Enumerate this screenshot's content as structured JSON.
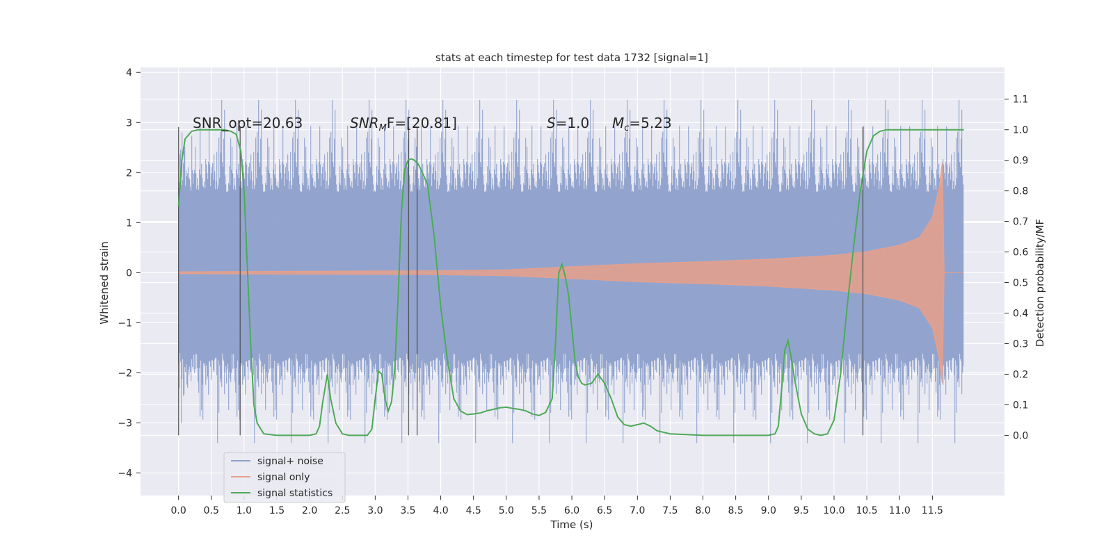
{
  "chart_data": {
    "type": "line",
    "title": "stats at each timestep for test data 1732 [signal=1]",
    "xlabel": "Time (s)",
    "ylabel": "Whitened strain",
    "y2label": "Detection probability/MF",
    "xlim": [
      -0.58,
      12.6
    ],
    "ylim": [
      -4.45,
      4.1
    ],
    "y2lim": [
      -0.197,
      1.204
    ],
    "xticks": [
      "0.0",
      "0.5",
      "1.0",
      "1.5",
      "2.0",
      "2.5",
      "3.0",
      "3.5",
      "4.0",
      "4.5",
      "5.0",
      "5.5",
      "6.0",
      "6.5",
      "7.0",
      "7.5",
      "8.0",
      "8.5",
      "9.0",
      "9.5",
      "10.0",
      "10.5",
      "11.0",
      "11.5"
    ],
    "yticks": [
      "4",
      "3",
      "2",
      "1",
      "0",
      "−1",
      "−2",
      "−3",
      "−4"
    ],
    "y2ticks": [
      "1.1",
      "1.0",
      "0.9",
      "0.8",
      "0.7",
      "0.6",
      "0.5",
      "0.4",
      "0.3",
      "0.2",
      "0.1",
      "0.0"
    ],
    "grid": true,
    "legend_position": "lower-left",
    "annotations": {
      "snr_opt": "SNR_opt=20.63",
      "snr_mf_main": "SNR",
      "snr_mf_sub": "M",
      "snr_mf_rest": "F=[20.81]",
      "s_italic": "S",
      "s_rest": "=1.0",
      "mc_italic": "M",
      "mc_sub": "c",
      "mc_rest": "=5.23"
    },
    "vertical_markers_x": [
      0.0,
      0.94,
      3.51,
      3.64,
      10.44
    ],
    "series": [
      {
        "name": "signal+ noise",
        "color": "#8da0cb",
        "envelope_typical": 1.6,
        "peak_range": [
          -4.1,
          3.6
        ],
        "t_range": [
          0.0,
          11.98
        ]
      },
      {
        "name": "signal only",
        "color": "#e8a08a",
        "amplitude_envelope": {
          "t": [
            0.0,
            2.0,
            4.0,
            5.0,
            6.0,
            7.0,
            8.0,
            9.0,
            10.0,
            10.5,
            11.0,
            11.3,
            11.5,
            11.6,
            11.65,
            11.68,
            11.98
          ],
          "amp": [
            0.02,
            0.03,
            0.04,
            0.06,
            0.12,
            0.18,
            0.22,
            0.27,
            0.35,
            0.42,
            0.55,
            0.7,
            1.1,
            1.7,
            2.2,
            0.0,
            0.0
          ]
        }
      },
      {
        "name": "signal statistics",
        "color": "#4daa57",
        "x": [
          0.0,
          0.05,
          0.1,
          0.2,
          0.3,
          0.5,
          0.7,
          0.8,
          0.88,
          0.95,
          1.0,
          1.05,
          1.1,
          1.15,
          1.2,
          1.3,
          1.5,
          2.0,
          2.1,
          2.15,
          2.2,
          2.27,
          2.32,
          2.4,
          2.5,
          2.6,
          2.8,
          2.88,
          2.95,
          3.0,
          3.05,
          3.1,
          3.15,
          3.2,
          3.25,
          3.3,
          3.35,
          3.4,
          3.45,
          3.5,
          3.55,
          3.6,
          3.65,
          3.7,
          3.8,
          3.9,
          4.0,
          4.1,
          4.2,
          4.3,
          4.4,
          4.5,
          4.6,
          4.7,
          4.8,
          4.9,
          5.0,
          5.1,
          5.2,
          5.3,
          5.4,
          5.5,
          5.6,
          5.7,
          5.75,
          5.8,
          5.85,
          5.9,
          5.95,
          6.0,
          6.05,
          6.1,
          6.15,
          6.2,
          6.3,
          6.4,
          6.5,
          6.6,
          6.7,
          6.8,
          6.9,
          7.0,
          7.1,
          7.2,
          7.3,
          7.5,
          8.0,
          8.5,
          9.0,
          9.1,
          9.15,
          9.2,
          9.25,
          9.3,
          9.35,
          9.4,
          9.5,
          9.6,
          9.7,
          9.8,
          9.9,
          10.0,
          10.1,
          10.2,
          10.3,
          10.4,
          10.5,
          10.6,
          10.7,
          10.8,
          10.9,
          11.0,
          11.5,
          11.98
        ],
        "y": [
          0.75,
          0.9,
          0.97,
          0.995,
          1.0,
          1.0,
          1.0,
          0.995,
          0.985,
          0.93,
          0.8,
          0.55,
          0.3,
          0.1,
          0.04,
          0.005,
          0.0,
          0.0,
          0.005,
          0.03,
          0.11,
          0.2,
          0.12,
          0.04,
          0.005,
          0.0,
          0.0,
          0.0,
          0.02,
          0.12,
          0.21,
          0.2,
          0.12,
          0.08,
          0.11,
          0.22,
          0.45,
          0.73,
          0.87,
          0.9,
          0.905,
          0.9,
          0.89,
          0.87,
          0.82,
          0.65,
          0.42,
          0.25,
          0.12,
          0.08,
          0.068,
          0.07,
          0.073,
          0.08,
          0.085,
          0.09,
          0.092,
          0.088,
          0.085,
          0.08,
          0.07,
          0.065,
          0.075,
          0.12,
          0.3,
          0.53,
          0.56,
          0.52,
          0.46,
          0.35,
          0.24,
          0.19,
          0.17,
          0.165,
          0.17,
          0.2,
          0.17,
          0.12,
          0.06,
          0.035,
          0.03,
          0.035,
          0.04,
          0.03,
          0.015,
          0.005,
          0.0,
          0.0,
          0.0,
          0.005,
          0.03,
          0.15,
          0.28,
          0.31,
          0.25,
          0.18,
          0.07,
          0.02,
          0.005,
          0.0,
          0.005,
          0.05,
          0.2,
          0.42,
          0.62,
          0.8,
          0.93,
          0.98,
          0.995,
          1.0,
          1.0,
          1.0,
          1.0,
          1.0
        ]
      }
    ]
  }
}
